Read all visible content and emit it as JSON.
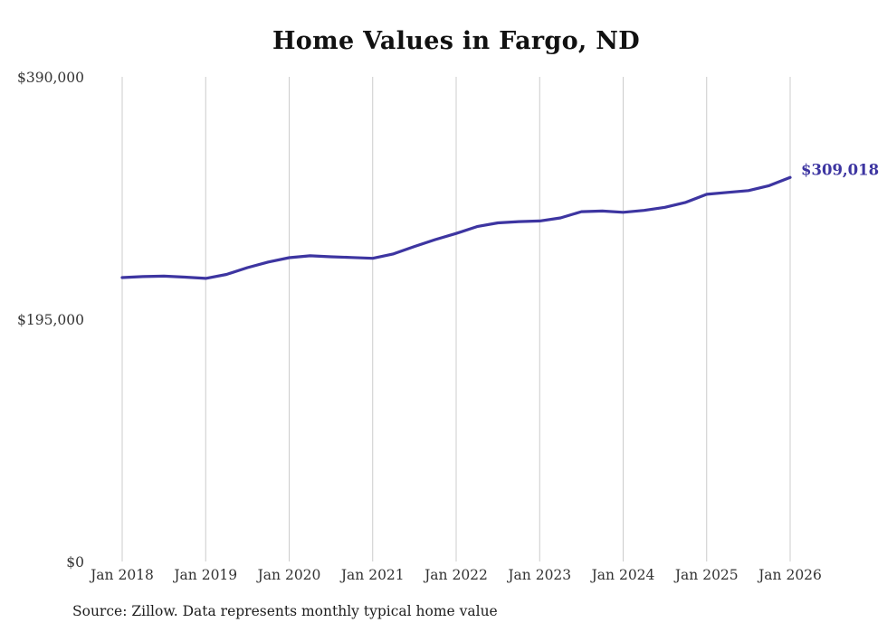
{
  "chart": {
    "title": "Home Values in Fargo, ND",
    "source": "Source: Zillow. Data represents monthly typical home value",
    "line_color": "#3d35a1",
    "grid_color": "#cccccc",
    "text_color": "#333333",
    "end_label": "$309,018"
  },
  "chart_data": {
    "type": "line",
    "title": "Home Values in Fargo, ND",
    "x": [
      "2018-01",
      "2018-04",
      "2018-07",
      "2018-10",
      "2019-01",
      "2019-04",
      "2019-07",
      "2019-10",
      "2020-01",
      "2020-04",
      "2020-07",
      "2020-10",
      "2021-01",
      "2021-04",
      "2021-07",
      "2021-10",
      "2022-01",
      "2022-04",
      "2022-07",
      "2022-10",
      "2023-01",
      "2023-04",
      "2023-07",
      "2023-10",
      "2024-01",
      "2024-04",
      "2024-07",
      "2024-10",
      "2025-01",
      "2025-04",
      "2025-07",
      "2025-10",
      "2026-01"
    ],
    "values": [
      228500,
      229300,
      229600,
      228800,
      227800,
      231000,
      236500,
      241000,
      244500,
      246000,
      245200,
      244600,
      244000,
      247500,
      253500,
      259000,
      264000,
      269500,
      272500,
      273500,
      274000,
      276500,
      281500,
      282000,
      281000,
      282500,
      285000,
      289000,
      295500,
      297000,
      298500,
      302500,
      309018
    ],
    "x_tick_labels": [
      "Jan 2018",
      "Jan 2019",
      "Jan 2020",
      "Jan 2021",
      "Jan 2022",
      "Jan 2023",
      "Jan 2024",
      "Jan 2025",
      "Jan 2026"
    ],
    "y_ticks": [
      {
        "value": 0,
        "label": "$0"
      },
      {
        "value": 195000,
        "label": "$195,000"
      },
      {
        "value": 390000,
        "label": "$390,000"
      }
    ],
    "ylim": [
      0,
      390000
    ],
    "grid": "vertical-only",
    "legend": "none",
    "final_value": 309018,
    "final_value_label": "$309,018",
    "source": "Source: Zillow. Data represents monthly typical home value"
  }
}
